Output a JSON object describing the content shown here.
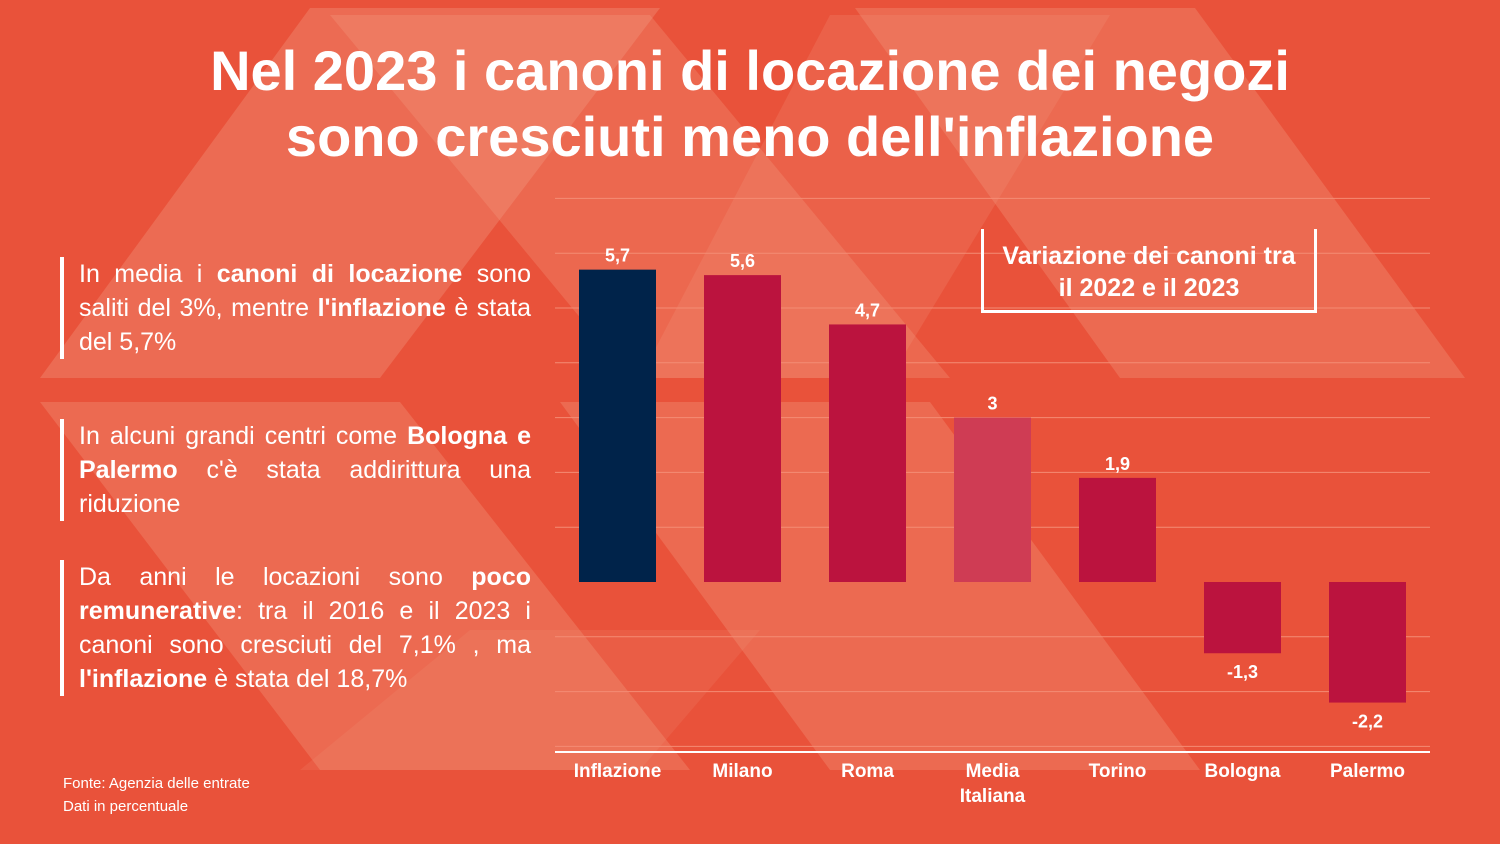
{
  "title": {
    "line1": "Nel 2023 i canoni di locazione dei negozi",
    "line2": "sono cresciuti meno dell'inflazione"
  },
  "paragraphs": [
    {
      "t1": "In media i ",
      "b1": "canoni di locazione",
      "t2": " sono saliti del 3%, mentre ",
      "b2": "l'inflazione",
      "t3": " è stata del 5,7%"
    },
    {
      "t1": "In alcuni grandi centri come ",
      "b1": "Bologna e Palermo",
      "t2": " c'è stata addirittura una riduzione"
    },
    {
      "t1": "Da anni le locazioni sono ",
      "b1": "poco remunerative",
      "t2": ": tra il 2016 e il 2023 i canoni sono cresciuti del 7,1% , ma ",
      "b2": "l'inflazione",
      "t3": " è stata del 18,7%"
    }
  ],
  "source": {
    "line1": "Fonte: Agenzia delle entrate",
    "line2": "Dati in percentuale"
  },
  "legend": {
    "line1": "Variazione dei canoni tra",
    "line2": "il 2022 e il 2023"
  },
  "colors": {
    "background": "#e9523a",
    "inflation_bar": "#00234a",
    "city_bar": "#bb133e",
    "average_bar": "#cf3c54"
  },
  "chart_data": {
    "type": "bar",
    "categories": [
      "Inflazione",
      "Milano",
      "Roma",
      "Media Italiana",
      "Torino",
      "Bologna",
      "Palermo"
    ],
    "category_lines": [
      [
        "Inflazione"
      ],
      [
        "Milano"
      ],
      [
        "Roma"
      ],
      [
        "Media",
        "Italiana"
      ],
      [
        "Torino"
      ],
      [
        "Bologna"
      ],
      [
        "Palermo"
      ]
    ],
    "values": [
      5.7,
      5.6,
      4.7,
      3,
      1.9,
      -1.3,
      -2.2
    ],
    "value_labels": [
      "5,7",
      "5,6",
      "4,7",
      "3",
      "1,9",
      "-1,3",
      "-2,2"
    ],
    "bar_colors": [
      "#00234a",
      "#bb133e",
      "#bb133e",
      "#cf3c54",
      "#bb133e",
      "#bb133e",
      "#bb133e"
    ],
    "ylim": [
      -3,
      7
    ],
    "grid": true,
    "title": "Variazione dei canoni tra il 2022 e il 2023",
    "xlabel": "",
    "ylabel": ""
  }
}
